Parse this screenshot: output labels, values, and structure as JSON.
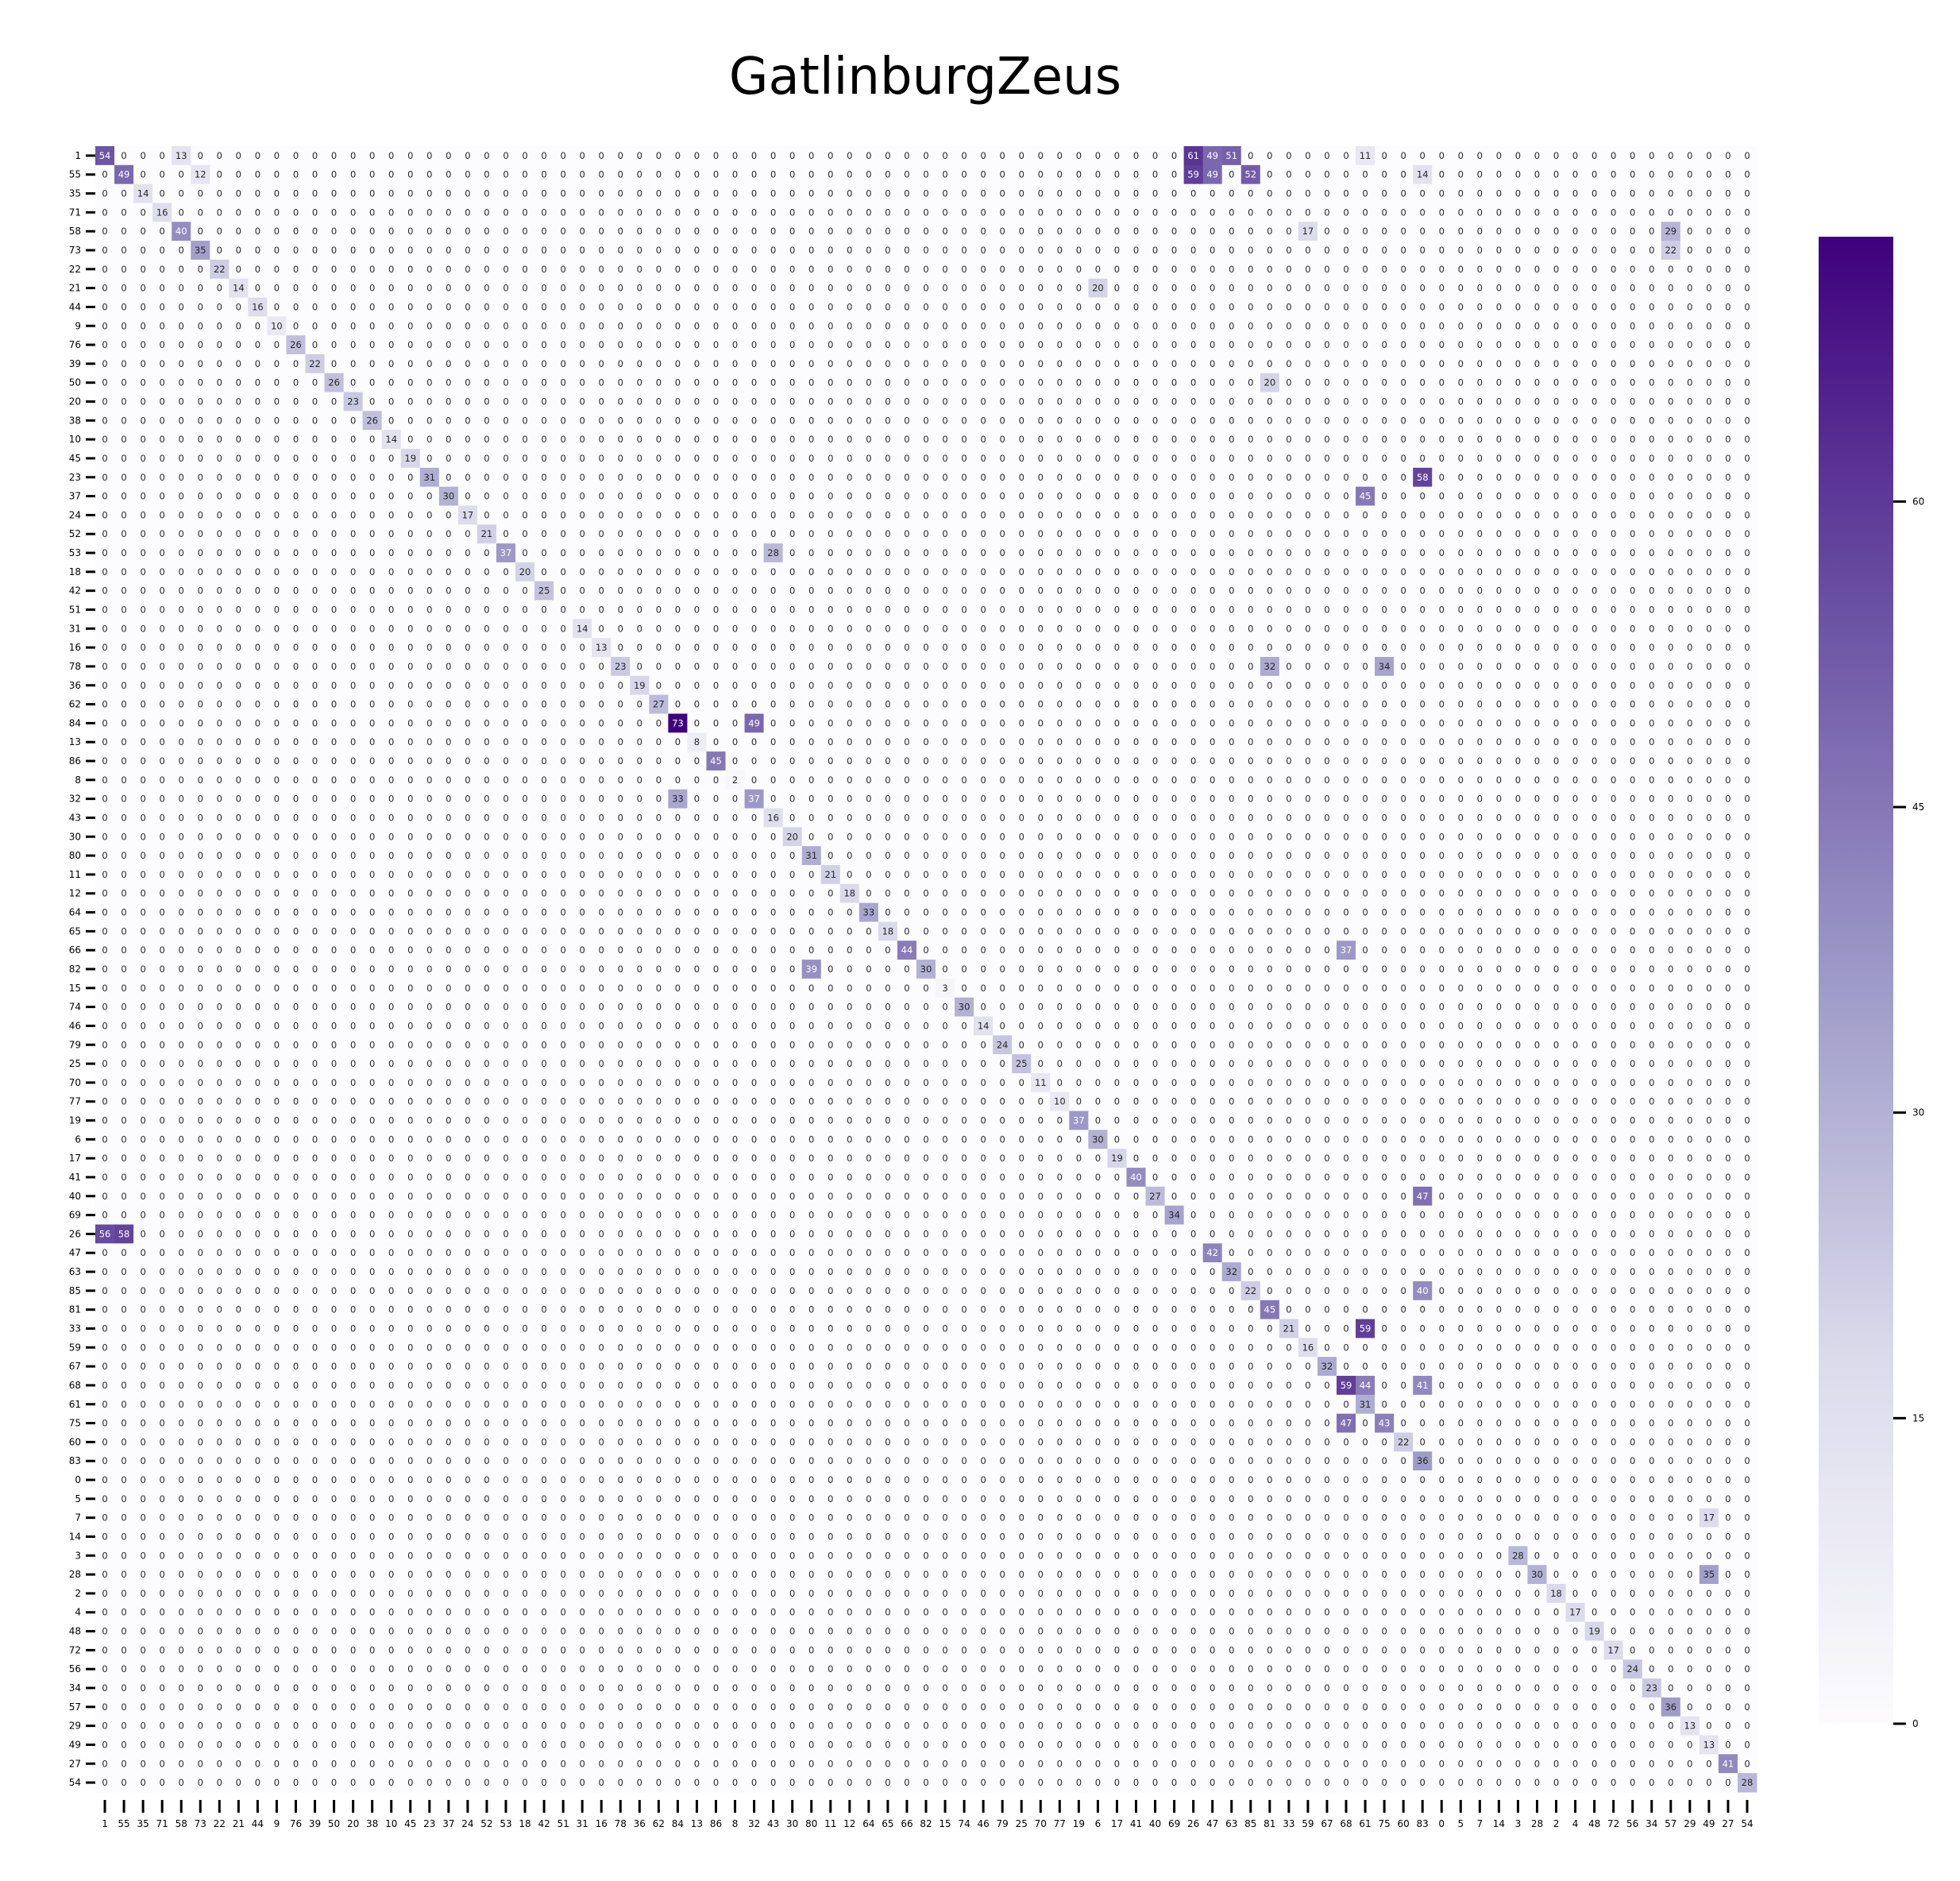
{
  "chart_data": {
    "type": "heatmap",
    "title": "GatlinburgZeus",
    "labels": [
      "1",
      "55",
      "35",
      "71",
      "58",
      "73",
      "22",
      "21",
      "44",
      "9",
      "76",
      "39",
      "50",
      "20",
      "38",
      "10",
      "45",
      "23",
      "37",
      "24",
      "52",
      "53",
      "18",
      "42",
      "51",
      "31",
      "16",
      "78",
      "36",
      "62",
      "84",
      "13",
      "86",
      "8",
      "32",
      "43",
      "30",
      "80",
      "11",
      "12",
      "64",
      "65",
      "66",
      "82",
      "15",
      "74",
      "46",
      "79",
      "25",
      "70",
      "77",
      "19",
      "6",
      "17",
      "41",
      "40",
      "69",
      "26",
      "47",
      "63",
      "85",
      "81",
      "33",
      "59",
      "67",
      "68",
      "61",
      "75",
      "60",
      "83",
      "0",
      "5",
      "7",
      "14",
      "3",
      "28",
      "2",
      "4",
      "48",
      "72",
      "56",
      "34",
      "57",
      "29",
      "49",
      "27",
      "54"
    ],
    "colorbar": {
      "min": 0,
      "max": 73,
      "ticks": [
        0,
        15,
        30,
        45,
        60
      ]
    },
    "colormap": {
      "low": "#fcfbfd",
      "high": "#3f007d",
      "name": "Purples"
    },
    "known_values": [
      {
        "row": "1",
        "col": "1",
        "value": 54
      },
      {
        "row": "1",
        "col": "58",
        "value": 13
      },
      {
        "row": "1",
        "col": "26",
        "value": 61
      },
      {
        "row": "1",
        "col": "47",
        "value": 49
      },
      {
        "row": "1",
        "col": "63",
        "value": 51
      },
      {
        "row": "1",
        "col": "61",
        "value": 11
      },
      {
        "row": "55",
        "col": "55",
        "value": 49
      },
      {
        "row": "55",
        "col": "73",
        "value": 12
      },
      {
        "row": "55",
        "col": "26",
        "value": 59
      },
      {
        "row": "55",
        "col": "47",
        "value": 49
      },
      {
        "row": "55",
        "col": "85",
        "value": 52
      },
      {
        "row": "55",
        "col": "83",
        "value": 14
      },
      {
        "row": "35",
        "col": "35",
        "value": 14
      },
      {
        "row": "71",
        "col": "71",
        "value": 16
      },
      {
        "row": "58",
        "col": "58",
        "value": 40
      },
      {
        "row": "58",
        "col": "59",
        "value": 17
      },
      {
        "row": "58",
        "col": "57",
        "value": 29
      },
      {
        "row": "73",
        "col": "73",
        "value": 35
      },
      {
        "row": "73",
        "col": "57",
        "value": 22
      },
      {
        "row": "22",
        "col": "22",
        "value": 22
      },
      {
        "row": "21",
        "col": "21",
        "value": 14
      },
      {
        "row": "21",
        "col": "6",
        "value": 20
      },
      {
        "row": "44",
        "col": "44",
        "value": 16
      },
      {
        "row": "9",
        "col": "9",
        "value": 10
      },
      {
        "row": "76",
        "col": "76",
        "value": 26
      },
      {
        "row": "39",
        "col": "39",
        "value": 22
      },
      {
        "row": "50",
        "col": "50",
        "value": 26
      },
      {
        "row": "50",
        "col": "81",
        "value": 20
      },
      {
        "row": "20",
        "col": "20",
        "value": 23
      },
      {
        "row": "38",
        "col": "38",
        "value": 26
      },
      {
        "row": "10",
        "col": "10",
        "value": 14
      },
      {
        "row": "45",
        "col": "45",
        "value": 19
      },
      {
        "row": "23",
        "col": "23",
        "value": 31
      },
      {
        "row": "23",
        "col": "83",
        "value": 58
      },
      {
        "row": "37",
        "col": "37",
        "value": 30
      },
      {
        "row": "37",
        "col": "61",
        "value": 45
      },
      {
        "row": "24",
        "col": "24",
        "value": 17
      },
      {
        "row": "52",
        "col": "52",
        "value": 21
      },
      {
        "row": "53",
        "col": "53",
        "value": 37
      },
      {
        "row": "53",
        "col": "43",
        "value": 28
      },
      {
        "row": "18",
        "col": "18",
        "value": 20
      },
      {
        "row": "42",
        "col": "42",
        "value": 25
      },
      {
        "row": "31",
        "col": "31",
        "value": 14
      },
      {
        "row": "16",
        "col": "16",
        "value": 13
      },
      {
        "row": "78",
        "col": "78",
        "value": 23
      },
      {
        "row": "78",
        "col": "81",
        "value": 32
      },
      {
        "row": "78",
        "col": "75",
        "value": 34
      },
      {
        "row": "36",
        "col": "36",
        "value": 19
      },
      {
        "row": "62",
        "col": "62",
        "value": 27
      },
      {
        "row": "84",
        "col": "84",
        "value": 73
      },
      {
        "row": "84",
        "col": "32",
        "value": 49
      },
      {
        "row": "13",
        "col": "13",
        "value": 8
      },
      {
        "row": "86",
        "col": "86",
        "value": 45
      },
      {
        "row": "8",
        "col": "8",
        "value": 2
      },
      {
        "row": "32",
        "col": "32",
        "value": 37
      },
      {
        "row": "32",
        "col": "84",
        "value": 33
      },
      {
        "row": "43",
        "col": "43",
        "value": 16
      },
      {
        "row": "30",
        "col": "30",
        "value": 20
      },
      {
        "row": "80",
        "col": "80",
        "value": 31
      },
      {
        "row": "11",
        "col": "11",
        "value": 21
      },
      {
        "row": "12",
        "col": "12",
        "value": 18
      },
      {
        "row": "64",
        "col": "64",
        "value": 33
      },
      {
        "row": "65",
        "col": "65",
        "value": 18
      },
      {
        "row": "66",
        "col": "66",
        "value": 44
      },
      {
        "row": "66",
        "col": "68",
        "value": 37
      },
      {
        "row": "82",
        "col": "82",
        "value": 30
      },
      {
        "row": "82",
        "col": "80",
        "value": 39
      },
      {
        "row": "15",
        "col": "15",
        "value": 3
      },
      {
        "row": "74",
        "col": "74",
        "value": 30
      },
      {
        "row": "46",
        "col": "46",
        "value": 14
      },
      {
        "row": "79",
        "col": "79",
        "value": 24
      },
      {
        "row": "25",
        "col": "25",
        "value": 25
      },
      {
        "row": "70",
        "col": "70",
        "value": 11
      },
      {
        "row": "77",
        "col": "77",
        "value": 10
      },
      {
        "row": "19",
        "col": "19",
        "value": 37
      },
      {
        "row": "6",
        "col": "6",
        "value": 30
      },
      {
        "row": "17",
        "col": "17",
        "value": 19
      },
      {
        "row": "41",
        "col": "41",
        "value": 40
      },
      {
        "row": "40",
        "col": "40",
        "value": 27
      },
      {
        "row": "40",
        "col": "83",
        "value": 47
      },
      {
        "row": "69",
        "col": "69",
        "value": 34
      },
      {
        "row": "26",
        "col": "1",
        "value": 56
      },
      {
        "row": "26",
        "col": "55",
        "value": 58
      },
      {
        "row": "47",
        "col": "47",
        "value": 42
      },
      {
        "row": "63",
        "col": "63",
        "value": 32
      },
      {
        "row": "85",
        "col": "85",
        "value": 22
      },
      {
        "row": "85",
        "col": "83",
        "value": 40
      },
      {
        "row": "81",
        "col": "81",
        "value": 45
      },
      {
        "row": "33",
        "col": "33",
        "value": 21
      },
      {
        "row": "33",
        "col": "61",
        "value": 59
      },
      {
        "row": "59",
        "col": "59",
        "value": 16
      },
      {
        "row": "67",
        "col": "67",
        "value": 32
      },
      {
        "row": "68",
        "col": "68",
        "value": 59
      },
      {
        "row": "68",
        "col": "61",
        "value": 44
      },
      {
        "row": "68",
        "col": "83",
        "value": 41
      },
      {
        "row": "61",
        "col": "61",
        "value": 31
      },
      {
        "row": "75",
        "col": "75",
        "value": 43
      },
      {
        "row": "75",
        "col": "68",
        "value": 47
      },
      {
        "row": "60",
        "col": "60",
        "value": 22
      },
      {
        "row": "83",
        "col": "83",
        "value": 36
      },
      {
        "row": "7",
        "col": "49",
        "value": 17
      },
      {
        "row": "3",
        "col": "3",
        "value": 28
      },
      {
        "row": "28",
        "col": "28",
        "value": 30
      },
      {
        "row": "28",
        "col": "49",
        "value": 35
      },
      {
        "row": "2",
        "col": "2",
        "value": 18
      },
      {
        "row": "4",
        "col": "4",
        "value": 17
      },
      {
        "row": "48",
        "col": "48",
        "value": 19
      },
      {
        "row": "72",
        "col": "72",
        "value": 17
      },
      {
        "row": "56",
        "col": "56",
        "value": 24
      },
      {
        "row": "34",
        "col": "34",
        "value": 23
      },
      {
        "row": "57",
        "col": "57",
        "value": 36
      },
      {
        "row": "29",
        "col": "29",
        "value": 13
      },
      {
        "row": "49",
        "col": "49",
        "value": 13
      },
      {
        "row": "27",
        "col": "27",
        "value": 41
      },
      {
        "row": "54",
        "col": "54",
        "value": 28
      }
    ]
  }
}
